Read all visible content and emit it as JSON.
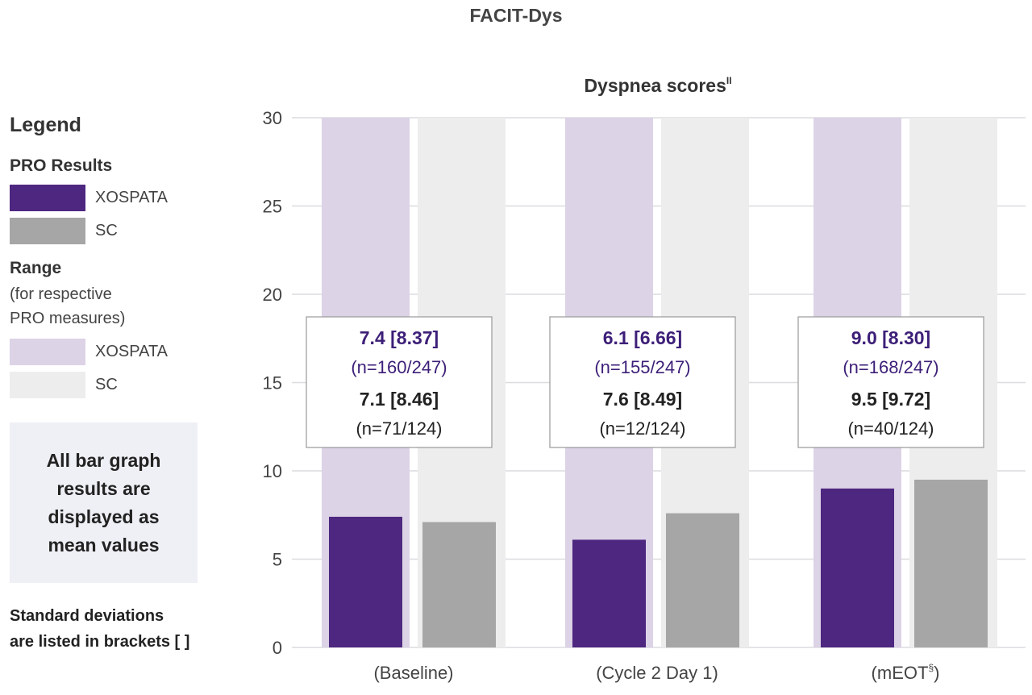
{
  "page_title": "FACIT-Dys",
  "legend": {
    "title": "Legend",
    "pro_heading": "PRO Results",
    "pro_items": [
      {
        "label": "XOSPATA",
        "color": "#4e2780"
      },
      {
        "label": "SC",
        "color": "#a6a6a6"
      }
    ],
    "range_heading": "Range",
    "range_sub1": "(for respective",
    "range_sub2": "PRO measures)",
    "range_items": [
      {
        "label": "XOSPATA",
        "color": "#dcd3e6"
      },
      {
        "label": "SC",
        "color": "#ededed"
      }
    ],
    "note": "All bar graph results are displayed as mean values",
    "footer1": "Standard deviations",
    "footer2": "are listed in brackets [ ]"
  },
  "chart_data": {
    "type": "bar",
    "title": "Dyspnea scores",
    "title_sup": "II",
    "categories": [
      "(Baseline)",
      "(Cycle 2 Day 1)",
      "(mEOT"
    ],
    "category_sups": [
      "",
      "",
      "§"
    ],
    "category_suffix": [
      "",
      "",
      ")"
    ],
    "ylim": [
      0,
      30
    ],
    "yticks": [
      0,
      5,
      10,
      15,
      20,
      25,
      30
    ],
    "grid": true,
    "range_max": 30,
    "series": [
      {
        "name": "XOSPATA",
        "color": "#4e2780",
        "values": [
          7.4,
          6.1,
          9.0
        ],
        "sd": [
          "8.37",
          "6.66",
          "8.30"
        ],
        "n": [
          "n=160/247",
          "n=155/247",
          "n=168/247"
        ],
        "label_color": "#3d1f78"
      },
      {
        "name": "SC",
        "color": "#a6a6a6",
        "values": [
          7.1,
          7.6,
          9.5
        ],
        "sd": [
          "8.46",
          "8.49",
          "9.72"
        ],
        "n": [
          "n=71/124",
          "n=12/124",
          "n=40/124"
        ],
        "label_color": "#222222"
      }
    ]
  }
}
